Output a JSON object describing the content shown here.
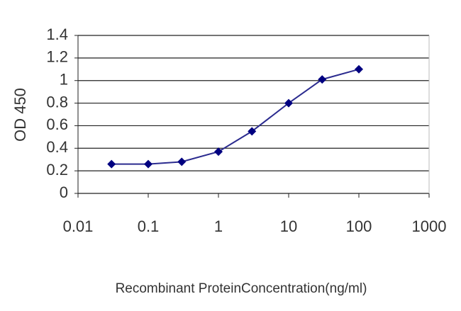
{
  "chart_data": {
    "type": "line",
    "x_label": "Recombinant ProteinConcentration(ng/ml)",
    "y_label": "OD 450",
    "x": [
      0.03,
      0.1,
      0.3,
      1,
      3,
      10,
      30,
      100
    ],
    "values": [
      0.26,
      0.26,
      0.28,
      0.37,
      0.55,
      0.8,
      1.01,
      1.1
    ],
    "color": "#2b2b8f",
    "marker_color": "#000080",
    "xscale": "log",
    "xlim": [
      0.01,
      1000
    ],
    "xticks": [
      0.01,
      0.1,
      1,
      10,
      100,
      1000
    ],
    "ylim": [
      0,
      1.4
    ],
    "yticks": [
      0,
      0.2,
      0.4,
      0.6,
      0.8,
      1,
      1.2,
      1.4
    ],
    "grid": true
  }
}
